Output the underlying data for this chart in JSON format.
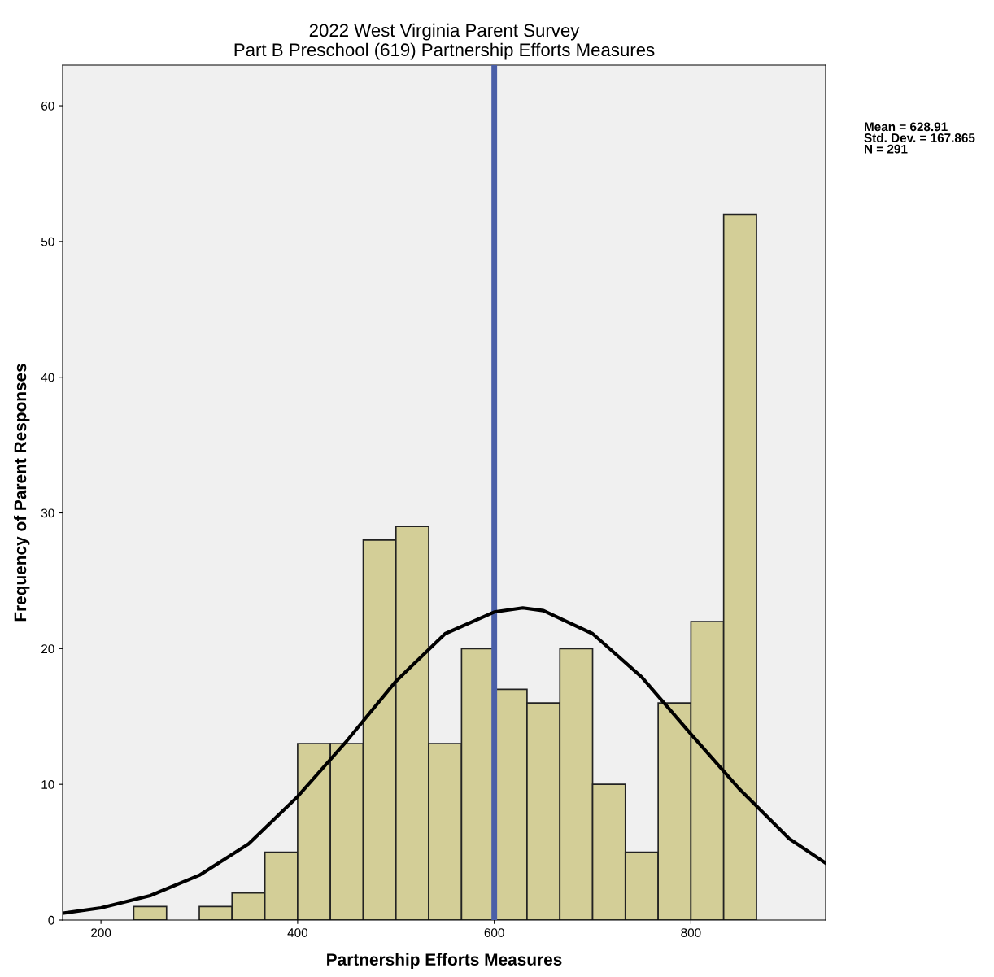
{
  "chart_data": {
    "type": "histogram",
    "title": "2022 West Virginia Parent Survey\nPart B Preschool (619) Partnership Efforts Measures",
    "xlabel": "Partnership Efforts Measures",
    "ylabel": "Frequency of Parent Responses",
    "bins": [
      233.3,
      266.7,
      300,
      333.3,
      366.7,
      400,
      433.3,
      466.7,
      500,
      533.3,
      566.7,
      600,
      633.3,
      666.7,
      700,
      733.3,
      766.7,
      800,
      833.3,
      866.7
    ],
    "values": [
      1,
      0,
      1,
      2,
      5,
      13,
      13,
      28,
      29,
      13,
      20,
      17,
      16,
      20,
      10,
      5,
      16,
      22,
      52
    ],
    "color": "#d3ce97",
    "series": [
      {
        "type": "line",
        "color": "#000000",
        "x": [
          161,
          200,
          250,
          300,
          350,
          400,
          450,
          500,
          550,
          600,
          629,
          650,
          700,
          750,
          800,
          850,
          900,
          937
        ],
        "values": [
          0.5,
          0.9,
          1.8,
          3.3,
          5.6,
          9.1,
          13.2,
          17.6,
          21.1,
          22.7,
          23,
          22.8,
          21.1,
          17.9,
          13.7,
          9.6,
          6.0,
          4.2
        ]
      }
    ],
    "ref_lines": [
      {
        "axis": "x",
        "value": 600,
        "color": "#4a5fa8"
      }
    ],
    "annotations": [
      "Mean = 628.91\nStd. Dev. = 167.865\nN = 291"
    ],
    "xlim": [
      161,
      937
    ],
    "ylim": [
      0,
      63
    ],
    "xticks": [
      200,
      400,
      600,
      800
    ],
    "yticks": [
      0,
      10,
      20,
      30,
      40,
      50,
      60
    ],
    "grid": false,
    "legend": false
  }
}
